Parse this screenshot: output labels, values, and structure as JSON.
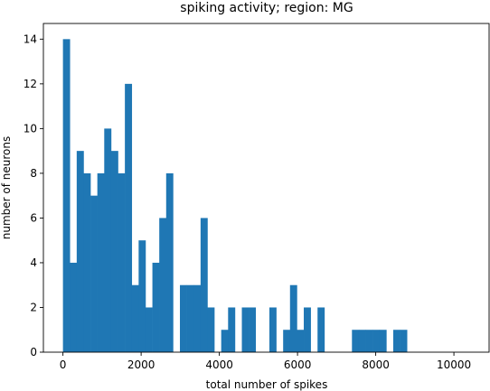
{
  "chart_data": {
    "type": "bar",
    "title": "spiking activity; region: MG",
    "xlabel": "total number of spikes",
    "ylabel": "number of neurons",
    "xlim": [
      -500,
      10900
    ],
    "ylim": [
      0,
      14.7
    ],
    "xticks": [
      0,
      2000,
      4000,
      6000,
      8000,
      10000
    ],
    "yticks": [
      0,
      2,
      4,
      6,
      8,
      10,
      12,
      14
    ],
    "grid": false,
    "color": "#1f77b4",
    "bin_start": 0,
    "bin_width": 176,
    "values": [
      14,
      4,
      9,
      8,
      7,
      8,
      10,
      9,
      8,
      12,
      3,
      5,
      2,
      4,
      6,
      8,
      0,
      3,
      3,
      3,
      6,
      2,
      0,
      1,
      2,
      0,
      2,
      2,
      0,
      0,
      2,
      0,
      1,
      3,
      1,
      2,
      0,
      2,
      0,
      0,
      0,
      0,
      1,
      1,
      1,
      1,
      1,
      0,
      1,
      1
    ]
  }
}
